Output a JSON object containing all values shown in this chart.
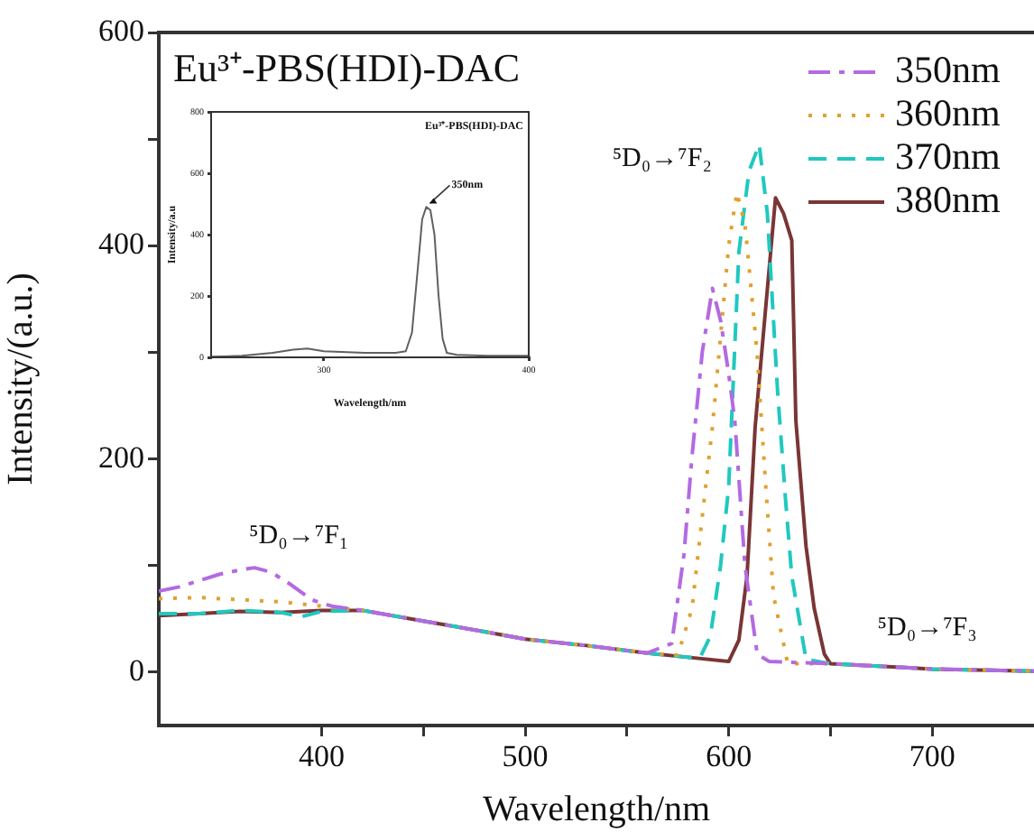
{
  "chart_data": [
    {
      "type": "line",
      "title": "Eu³⁺-PBS(HDI)-DAC",
      "xlabel": "Wavelength/nm",
      "ylabel": "Intensity/(a.u.)",
      "xlim": [
        320,
        750
      ],
      "ylim": [
        -50,
        600
      ],
      "xticks": [
        400,
        {
          "value": 450,
          "label": null
        },
        500,
        {
          "value": 550,
          "label": null
        },
        600,
        {
          "value": 650,
          "label": null
        },
        700
      ],
      "yticks": [
        0,
        {
          "value": 100,
          "label": null
        },
        200,
        {
          "value": 300,
          "label": null
        },
        400,
        {
          "value": 500,
          "label": null
        },
        600
      ],
      "grid": false,
      "legend": "top right",
      "marker": "none",
      "annotations": [
        "⁵D₀→⁷F₁",
        "⁵D₀→⁷F₂",
        "⁵D₀→⁷F₃"
      ],
      "series": [
        {
          "name": "350nm",
          "color": "#b36ae2",
          "line_style": "dashdot",
          "x": [
            320,
            330,
            340,
            350,
            360,
            367,
            375,
            385,
            395,
            405,
            420,
            450,
            480,
            500,
            530,
            560,
            572,
            578,
            582,
            587,
            592,
            596,
            600,
            603,
            608,
            614,
            620,
            650,
            700,
            750
          ],
          "values": [
            76,
            80,
            86,
            92,
            96,
            98,
            94,
            82,
            68,
            62,
            58,
            48,
            38,
            31,
            25,
            18,
            27,
            110,
            203,
            300,
            360,
            330,
            280,
            236,
            100,
            17,
            10,
            8,
            3,
            1
          ]
        },
        {
          "name": "360nm",
          "color": "#e0a030",
          "line_style": "dotted",
          "x": [
            320,
            340,
            360,
            380,
            400,
            420,
            450,
            480,
            500,
            530,
            560,
            575,
            582,
            587,
            592,
            596,
            600,
            604,
            608,
            611,
            614,
            618,
            622,
            629,
            650,
            700,
            750
          ],
          "values": [
            69,
            70,
            68,
            66,
            62,
            58,
            48,
            38,
            31,
            25,
            18,
            16,
            60,
            146,
            230,
            315,
            400,
            450,
            420,
            360,
            298,
            180,
            72,
            8,
            8,
            3,
            1
          ]
        },
        {
          "name": "370nm",
          "color": "#20c8c0",
          "line_style": "dashed",
          "x": [
            320,
            340,
            360,
            380,
            390,
            400,
            420,
            450,
            480,
            500,
            530,
            560,
            580,
            586,
            591,
            596,
            600,
            605,
            610,
            615,
            619,
            624,
            628,
            631,
            638,
            650,
            700,
            750
          ],
          "values": [
            55,
            55,
            58,
            56,
            52,
            57,
            58,
            48,
            38,
            31,
            25,
            18,
            14,
            14,
            34,
            100,
            174,
            394,
            470,
            495,
            430,
            264,
            160,
            90,
            12,
            8,
            3,
            1
          ]
        },
        {
          "name": "380nm",
          "color": "#7a3535",
          "line_style": "solid",
          "x": [
            320,
            340,
            360,
            380,
            400,
            420,
            450,
            480,
            500,
            530,
            560,
            580,
            600,
            605,
            609,
            613,
            618,
            623,
            627,
            631,
            633,
            638,
            642,
            647,
            650,
            700,
            750
          ],
          "values": [
            53,
            55,
            57,
            56,
            58,
            58,
            48,
            38,
            31,
            25,
            18,
            14,
            10,
            30,
            90,
            230,
            338,
            445,
            430,
            405,
            236,
            118,
            60,
            17,
            8,
            3,
            1
          ]
        }
      ]
    },
    {
      "type": "line",
      "title": "Eu³⁺-PBS(HDI)-DAC",
      "xlabel": "Wavelength/nm",
      "ylabel": "Intensity/a.u",
      "xlim": [
        245,
        400
      ],
      "ylim": [
        0,
        800
      ],
      "xticks": [
        300,
        400
      ],
      "yticks": [
        0,
        200,
        400,
        600,
        800
      ],
      "grid": false,
      "legend": false,
      "marker": "none",
      "annotations": [
        {
          "text": "350nm",
          "x": 350,
          "y": 490
        }
      ],
      "series": [
        {
          "color": "#606060",
          "line_style": "solid",
          "x": [
            245,
            260,
            275,
            285,
            292,
            300,
            320,
            335,
            340,
            343,
            346,
            348,
            350,
            352,
            354,
            356,
            358,
            360,
            365,
            380,
            400
          ],
          "values": [
            2,
            5,
            15,
            25,
            29,
            20,
            15,
            15,
            20,
            80,
            300,
            450,
            490,
            480,
            400,
            200,
            60,
            15,
            8,
            5,
            5
          ]
        }
      ]
    }
  ]
}
